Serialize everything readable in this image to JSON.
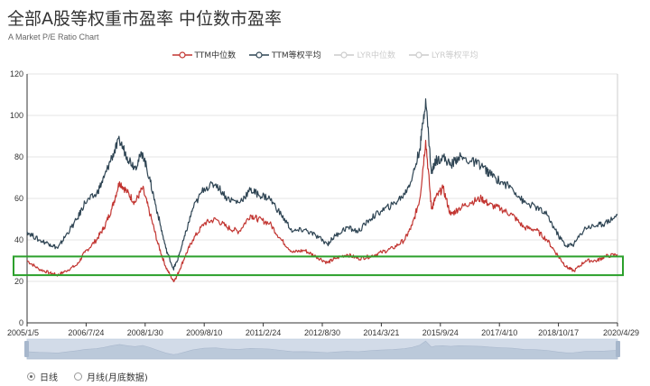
{
  "title": "全部A股等权重市盈率 中位数市盈率",
  "subtitle": "A Market P/E Ratio Chart",
  "legend": {
    "ttm_median": "TTM中位数",
    "ttm_equal": "TTM等权平均",
    "lyr_median": "LYR中位数",
    "lyr_equal": "LYR等权平均"
  },
  "view_mode": {
    "daily": "日线",
    "monthly": "月线(月底数据)",
    "selected": "daily"
  },
  "colors": {
    "ttm_median": "#c23531",
    "ttm_equal": "#2f4554",
    "lyr_inactive": "#cccccc",
    "highlight_box": "#2ca02c"
  },
  "chart_data": {
    "type": "line",
    "title": "全部A股等权重市盈率 中位数市盈率",
    "subtitle": "A Market P/E Ratio Chart",
    "x_tick_labels": [
      "2005/1/5",
      "2006/7/24",
      "2008/1/30",
      "2009/8/10",
      "2011/2/24",
      "2012/8/30",
      "2014/3/21",
      "2015/9/24",
      "2017/4/10",
      "2018/10/17",
      "2020/4/29"
    ],
    "y_ticks": [
      0,
      20,
      40,
      60,
      80,
      100,
      120
    ],
    "ylim": [
      0,
      120
    ],
    "xlim": [
      2005.0,
      2020.33
    ],
    "grid": true,
    "legend_position": "top-center",
    "highlight_band": [
      23,
      32
    ],
    "series": [
      {
        "name": "TTM中位数",
        "active": true,
        "x": [
          2005.0,
          2005.3,
          2005.6,
          2005.8,
          2006.0,
          2006.3,
          2006.5,
          2006.8,
          2007.0,
          2007.2,
          2007.4,
          2007.6,
          2007.8,
          2008.0,
          2008.2,
          2008.4,
          2008.6,
          2008.8,
          2008.9,
          2009.1,
          2009.3,
          2009.6,
          2009.9,
          2010.2,
          2010.5,
          2010.8,
          2011.0,
          2011.3,
          2011.6,
          2011.9,
          2012.2,
          2012.5,
          2012.8,
          2013.0,
          2013.3,
          2013.6,
          2013.9,
          2014.2,
          2014.5,
          2014.8,
          2015.0,
          2015.2,
          2015.35,
          2015.5,
          2015.6,
          2015.8,
          2016.0,
          2016.2,
          2016.5,
          2016.8,
          2017.0,
          2017.3,
          2017.6,
          2017.9,
          2018.2,
          2018.5,
          2018.8,
          2019.0,
          2019.2,
          2019.5,
          2019.8,
          2020.0,
          2020.33
        ],
        "values": [
          30,
          26,
          24,
          23,
          25,
          28,
          34,
          40,
          46,
          55,
          68,
          63,
          58,
          65,
          52,
          38,
          27,
          20,
          23,
          32,
          40,
          48,
          50,
          46,
          44,
          52,
          50,
          48,
          40,
          34,
          35,
          32,
          29,
          31,
          33,
          31,
          32,
          34,
          36,
          40,
          47,
          60,
          88,
          55,
          60,
          65,
          52,
          55,
          58,
          60,
          57,
          55,
          52,
          46,
          45,
          40,
          32,
          27,
          25,
          30,
          30,
          32,
          33
        ]
      },
      {
        "name": "TTM等权平均",
        "active": true,
        "x": [
          2005.0,
          2005.3,
          2005.6,
          2005.8,
          2006.0,
          2006.3,
          2006.5,
          2006.8,
          2007.0,
          2007.2,
          2007.4,
          2007.6,
          2007.8,
          2008.0,
          2008.2,
          2008.4,
          2008.6,
          2008.8,
          2008.9,
          2009.1,
          2009.3,
          2009.6,
          2009.9,
          2010.2,
          2010.5,
          2010.8,
          2011.0,
          2011.3,
          2011.6,
          2011.9,
          2012.2,
          2012.5,
          2012.8,
          2013.0,
          2013.3,
          2013.6,
          2013.9,
          2014.2,
          2014.5,
          2014.8,
          2015.0,
          2015.2,
          2015.35,
          2015.5,
          2015.6,
          2015.8,
          2016.0,
          2016.2,
          2016.5,
          2016.8,
          2017.0,
          2017.3,
          2017.6,
          2017.9,
          2018.2,
          2018.5,
          2018.8,
          2019.0,
          2019.2,
          2019.5,
          2019.8,
          2020.0,
          2020.33
        ],
        "values": [
          44,
          40,
          38,
          36,
          42,
          50,
          58,
          62,
          70,
          80,
          88,
          80,
          75,
          82,
          68,
          52,
          36,
          26,
          30,
          42,
          55,
          65,
          67,
          60,
          58,
          64,
          62,
          60,
          52,
          44,
          45,
          42,
          38,
          42,
          46,
          44,
          50,
          54,
          57,
          62,
          70,
          84,
          108,
          72,
          78,
          80,
          76,
          80,
          78,
          76,
          72,
          68,
          65,
          58,
          56,
          52,
          42,
          37,
          38,
          46,
          47,
          48,
          52
        ]
      },
      {
        "name": "LYR中位数",
        "active": false,
        "values": []
      },
      {
        "name": "LYR等权平均",
        "active": false,
        "values": []
      }
    ]
  }
}
